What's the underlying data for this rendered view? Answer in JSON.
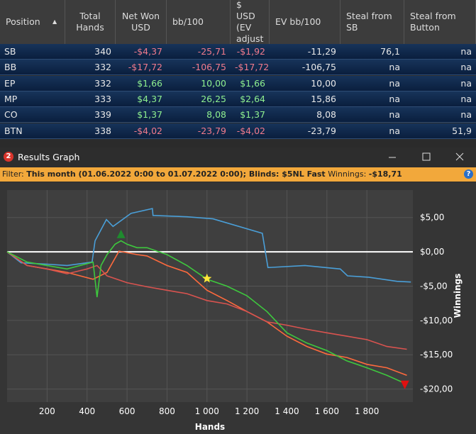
{
  "table": {
    "headers": [
      "Position",
      "Total Hands",
      "Net Won USD",
      "bb/100",
      "$ USD (EV adjust",
      "EV bb/100",
      "Steal from SB",
      "Steal from Button"
    ],
    "rows": [
      [
        "SB",
        "340",
        "-$4,37",
        "-25,71",
        "-$1,92",
        "-11,29",
        "76,1",
        "na"
      ],
      [
        "BB",
        "332",
        "-$17,72",
        "-106,75",
        "-$17,72",
        "-106,75",
        "na",
        "na"
      ],
      [
        "EP",
        "332",
        "$1,66",
        "10,00",
        "$1,66",
        "10,00",
        "na",
        "na"
      ],
      [
        "MP",
        "333",
        "$4,37",
        "26,25",
        "$2,64",
        "15,86",
        "na",
        "na"
      ],
      [
        "CO",
        "339",
        "$1,37",
        "8,08",
        "$1,37",
        "8,08",
        "na",
        "na"
      ],
      [
        "BTN",
        "338",
        "-$4,02",
        "-23,79",
        "-$4,02",
        "-23,79",
        "na",
        "51,9"
      ]
    ]
  },
  "window": {
    "icon_label": "2",
    "title": "Results Graph"
  },
  "filter": {
    "label": "Filter:",
    "text": "This month (01.06.2022 0:00 to 01.07.2022 0:00); Blinds: $5NL Fast",
    "winnings_label": "Winnings:",
    "winnings": "-$18,71"
  },
  "chart_data": {
    "type": "line",
    "x_label": "Hands",
    "y_label": "Winnings",
    "xlim": [
      0,
      2030
    ],
    "xticks": [
      200,
      400,
      600,
      800,
      {
        "value": 1000,
        "label": "1 000"
      },
      {
        "value": 1200,
        "label": "1 200"
      },
      {
        "value": 1400,
        "label": "1 400"
      },
      {
        "value": 1600,
        "label": "1 600"
      },
      {
        "value": 1800,
        "label": "1 800"
      }
    ],
    "ylim": [
      -21.9,
      9
    ],
    "yticks": [
      {
        "value": 5,
        "label": "$5,00"
      },
      {
        "value": 0,
        "label": "$0,00"
      },
      {
        "value": -5,
        "label": "-$5,00"
      },
      {
        "value": -10,
        "label": "-$10,00"
      },
      {
        "value": -15,
        "label": "-$15,00"
      },
      {
        "value": -20,
        "label": "-$20,00"
      }
    ],
    "grid": true,
    "series": [
      {
        "color": "#4a9fd8",
        "x": [
          0,
          70,
          200,
          300,
          425,
          440,
          497,
          530,
          620,
          727,
          730,
          900,
          1030,
          1277,
          1305,
          1490,
          1667,
          1703,
          1809,
          1950,
          2020
        ],
        "values": [
          0,
          -1.6,
          -1.8,
          -2,
          -1.5,
          1.6,
          4.7,
          3.7,
          5.6,
          6.3,
          5.3,
          5.1,
          4.8,
          2.7,
          -2.3,
          -2,
          -2.5,
          -3.5,
          -3.7,
          -4.3,
          -4.4
        ]
      },
      {
        "color": "#ff6a3d",
        "x": [
          0,
          100,
          300,
          430,
          500,
          560,
          650,
          700,
          800,
          900,
          1000,
          1100,
          1200,
          1300,
          1400,
          1500,
          1600,
          1700,
          1800,
          1900,
          2000
        ],
        "values": [
          0,
          -2,
          -3,
          -4,
          -3,
          0.1,
          -0.4,
          -0.6,
          -2,
          -3,
          -5.6,
          -7.1,
          -8.7,
          -10.2,
          -12.3,
          -13.8,
          -14.9,
          -15.4,
          -16.4,
          -16.9,
          -18
        ]
      },
      {
        "color": "#d9534f",
        "x": [
          0,
          100,
          200,
          300,
          400,
          450,
          500,
          600,
          700,
          800,
          900,
          1000,
          1100,
          1200,
          1300,
          1400,
          1500,
          1600,
          1700,
          1800,
          1900,
          2000
        ],
        "values": [
          0,
          -2,
          -2.5,
          -3.2,
          -2.5,
          -2,
          -3.5,
          -4.5,
          -5.1,
          -5.6,
          -6.1,
          -7.1,
          -7.6,
          -8.7,
          -10.2,
          -10.7,
          -11.3,
          -11.8,
          -12.3,
          -12.8,
          -13.8,
          -14.2
        ]
      },
      {
        "color": "#3ec83e",
        "x": [
          0,
          100,
          200,
          300,
          430,
          450,
          470,
          500,
          540,
          570,
          600,
          650,
          700,
          800,
          900,
          1000,
          1100,
          1200,
          1300,
          1400,
          1500,
          1600,
          1700,
          1800,
          1900,
          2000
        ],
        "values": [
          0,
          -1.5,
          -2,
          -2.5,
          -1.5,
          -6.6,
          -2,
          -0.4,
          1.1,
          1.6,
          1.1,
          0.6,
          0.6,
          -0.4,
          -2,
          -4,
          -5,
          -6.4,
          -8.7,
          -11.8,
          -13.3,
          -14.4,
          -15.9,
          -16.9,
          -18,
          -19.3
        ]
      }
    ],
    "markers": [
      {
        "shape": "triangle-up",
        "color": "#1f8a2e",
        "x": 570,
        "y": 2.5
      },
      {
        "shape": "star",
        "color": "#ffe838",
        "x": 1000,
        "y": -3.9
      },
      {
        "shape": "triangle-down",
        "color": "#e01010",
        "x": 1990,
        "y": -19.3
      }
    ]
  }
}
